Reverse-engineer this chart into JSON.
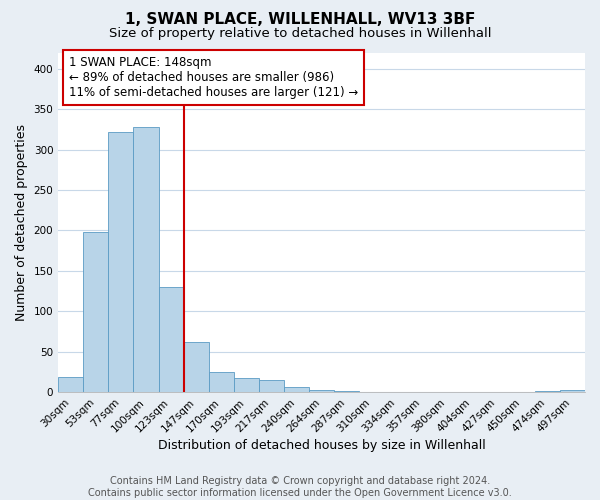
{
  "title": "1, SWAN PLACE, WILLENHALL, WV13 3BF",
  "subtitle": "Size of property relative to detached houses in Willenhall",
  "xlabel": "Distribution of detached houses by size in Willenhall",
  "ylabel": "Number of detached properties",
  "bar_labels": [
    "30sqm",
    "53sqm",
    "77sqm",
    "100sqm",
    "123sqm",
    "147sqm",
    "170sqm",
    "193sqm",
    "217sqm",
    "240sqm",
    "264sqm",
    "287sqm",
    "310sqm",
    "334sqm",
    "357sqm",
    "380sqm",
    "404sqm",
    "427sqm",
    "450sqm",
    "474sqm",
    "497sqm"
  ],
  "bar_values": [
    19,
    198,
    322,
    328,
    130,
    62,
    25,
    17,
    15,
    7,
    3,
    1,
    0,
    0,
    0,
    0,
    0,
    0,
    0,
    1,
    3
  ],
  "bar_color": "#b8d4e8",
  "bar_edge_color": "#5a9bc4",
  "vline_x": 4.5,
  "vline_color": "#cc0000",
  "annotation_text": "1 SWAN PLACE: 148sqm\n← 89% of detached houses are smaller (986)\n11% of semi-detached houses are larger (121) →",
  "annotation_box_color": "#ffffff",
  "annotation_box_edgecolor": "#cc0000",
  "ylim": [
    0,
    420
  ],
  "yticks": [
    0,
    50,
    100,
    150,
    200,
    250,
    300,
    350,
    400
  ],
  "footnote": "Contains HM Land Registry data © Crown copyright and database right 2024.\nContains public sector information licensed under the Open Government Licence v3.0.",
  "background_color": "#e8eef4",
  "plot_background_color": "#ffffff",
  "grid_color": "#c8d8e8",
  "title_fontsize": 11,
  "subtitle_fontsize": 9.5,
  "axis_label_fontsize": 9,
  "tick_fontsize": 7.5,
  "annotation_fontsize": 8.5,
  "footnote_fontsize": 7
}
